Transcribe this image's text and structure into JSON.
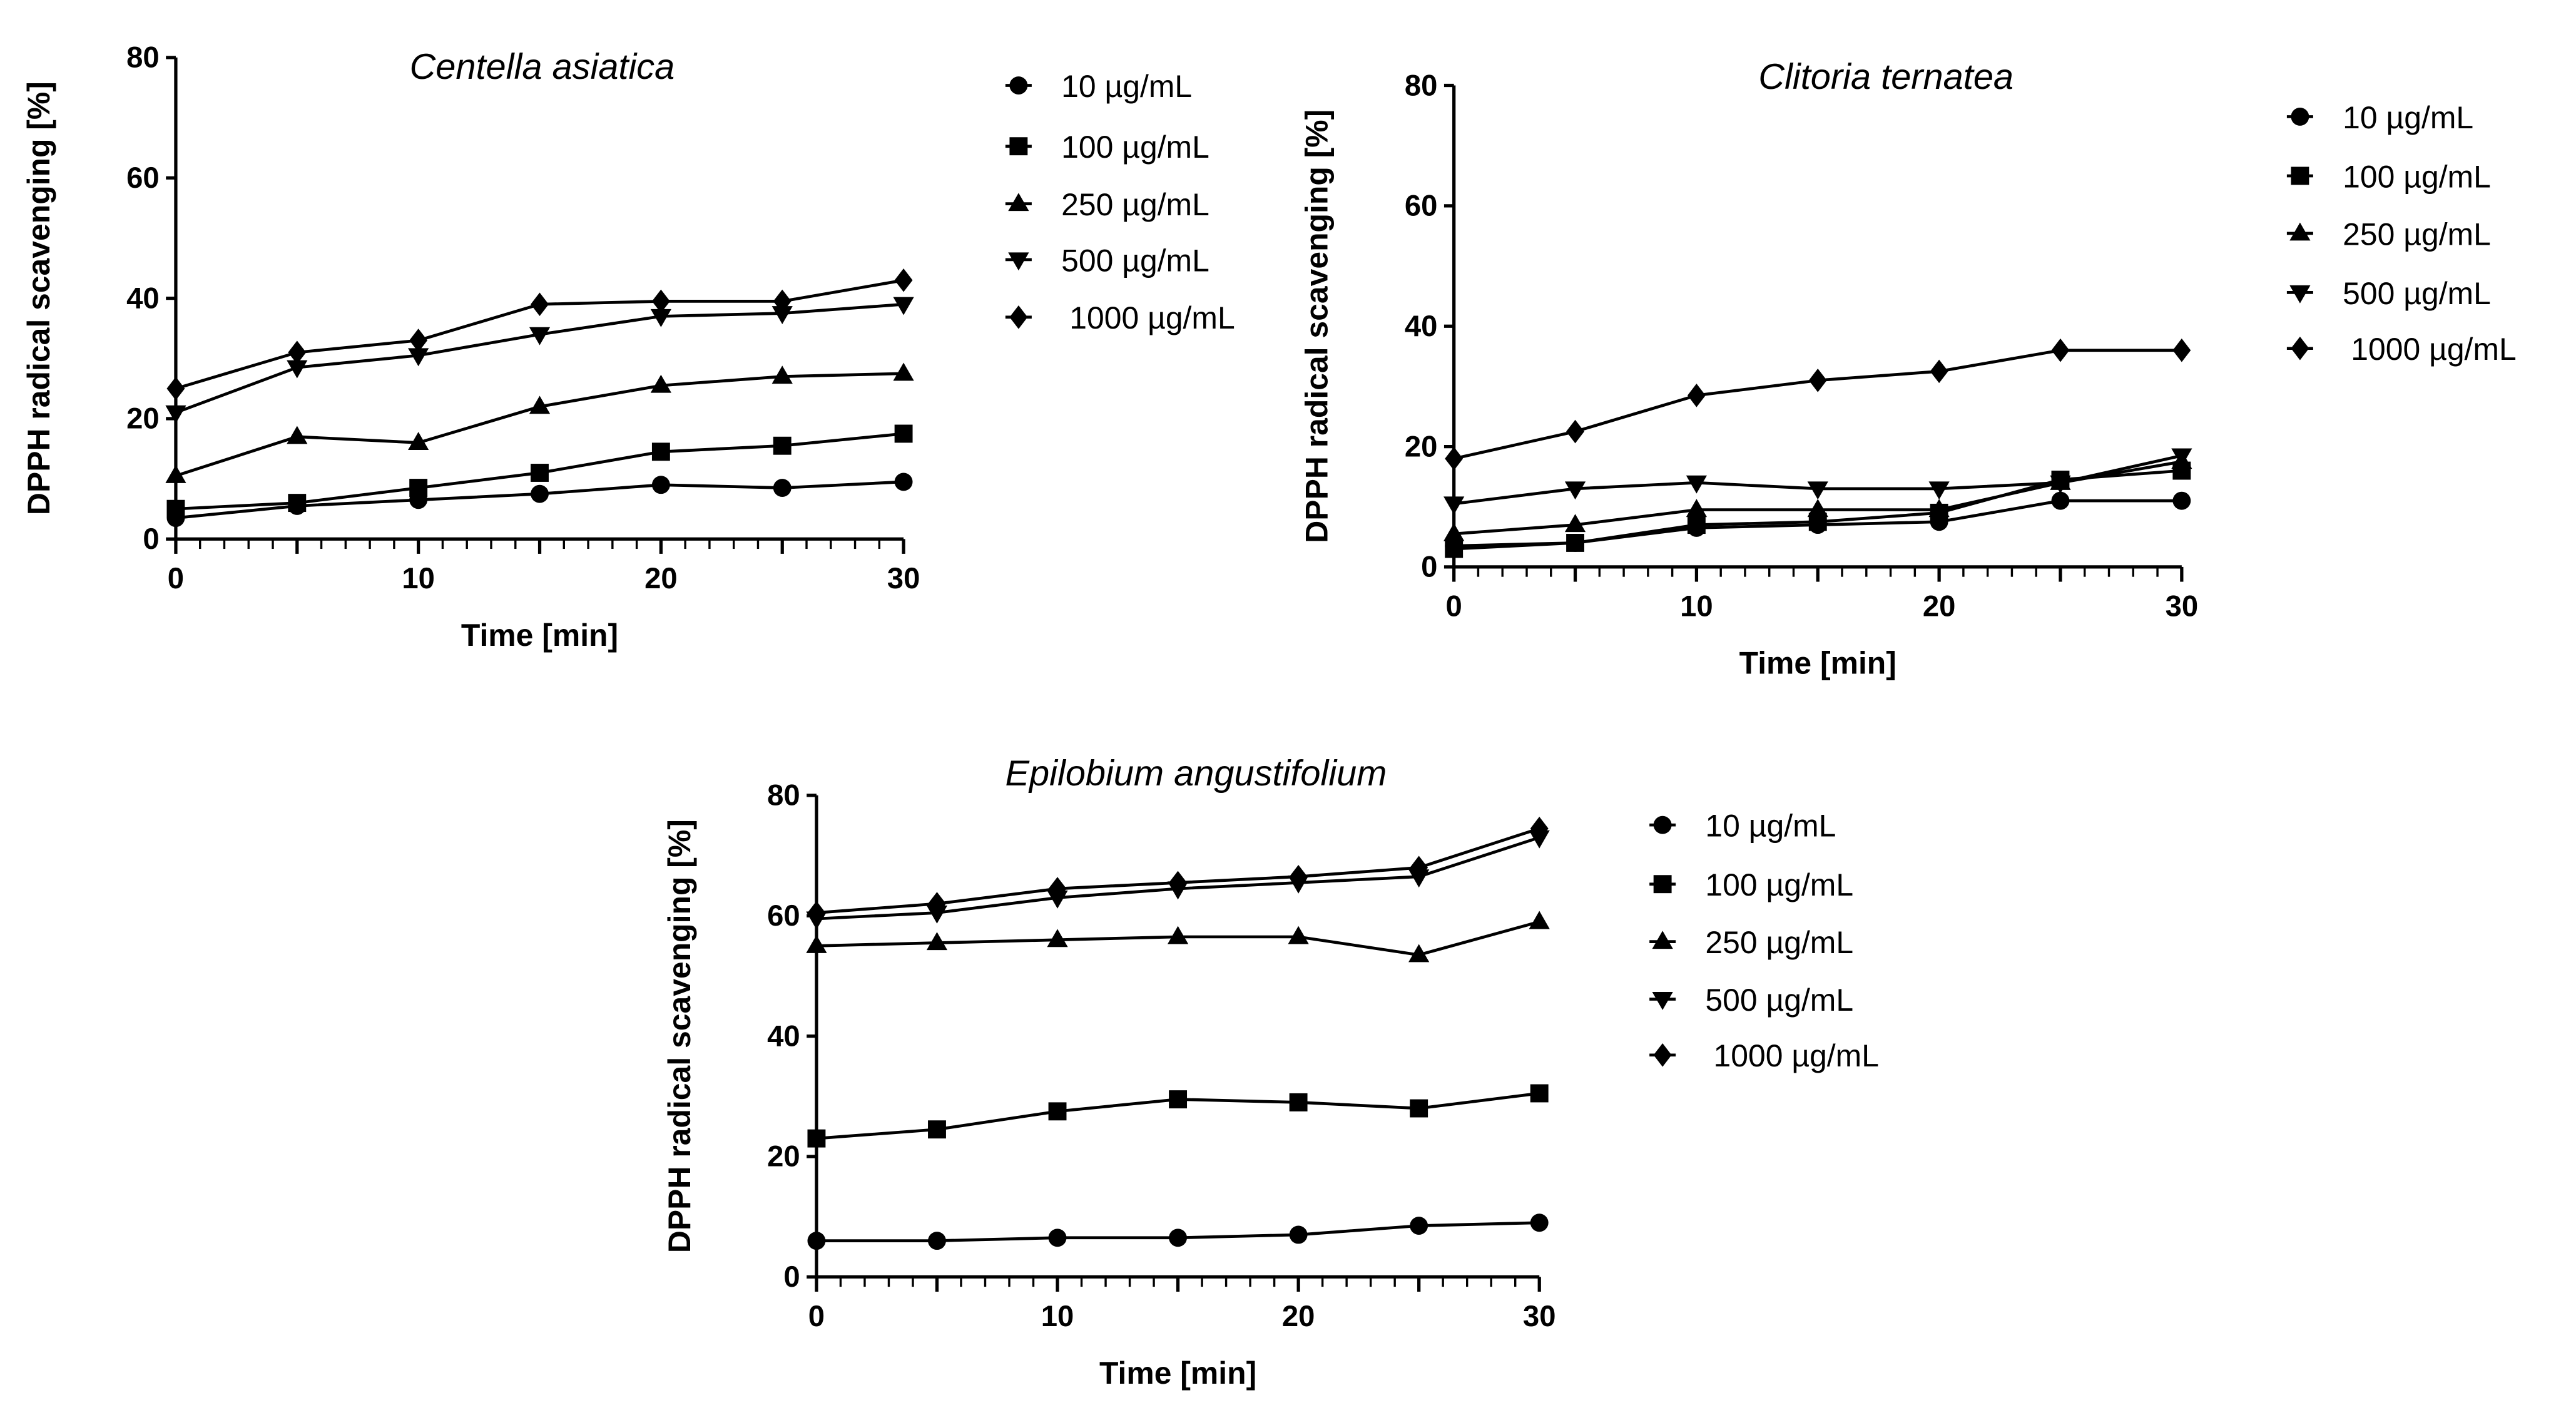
{
  "chart_data": [
    {
      "type": "line",
      "title": "Centella asiatica",
      "xlabel": "Time [min]",
      "ylabel": "DPPH radical scavenging [%]",
      "xlim": [
        0,
        30
      ],
      "ylim": [
        0,
        80
      ],
      "xticks": [
        0,
        10,
        20,
        30
      ],
      "yticks": [
        0,
        20,
        40,
        60,
        80
      ],
      "legend_position": "right",
      "x": [
        0,
        5,
        10,
        15,
        20,
        25,
        30
      ],
      "series": [
        {
          "name": "10 µg/mL",
          "marker": "circle",
          "values": [
            3.5,
            5.5,
            6.5,
            7.5,
            9,
            8.5,
            9.5
          ]
        },
        {
          "name": "100 µg/mL",
          "marker": "square",
          "values": [
            5,
            6,
            8.5,
            11,
            14.5,
            15.5,
            17.5
          ]
        },
        {
          "name": "250 µg/mL",
          "marker": "triangle-up",
          "values": [
            10.5,
            17,
            16,
            22,
            25.5,
            27,
            27.5
          ]
        },
        {
          "name": "500 µg/mL",
          "marker": "triangle-down",
          "values": [
            21,
            28.5,
            30.5,
            34,
            37,
            37.5,
            39
          ]
        },
        {
          "name": "1000 µg/mL",
          "marker": "diamond",
          "values": [
            25,
            31,
            33,
            39,
            39.5,
            39.5,
            43
          ]
        }
      ]
    },
    {
      "type": "line",
      "title": "Clitoria ternatea",
      "xlabel": "Time [min]",
      "ylabel": "DPPH radical scavenging [%]",
      "xlim": [
        0,
        30
      ],
      "ylim": [
        0,
        80
      ],
      "xticks": [
        0,
        10,
        20,
        30
      ],
      "yticks": [
        0,
        20,
        40,
        60,
        80
      ],
      "legend_position": "right",
      "x": [
        0,
        5,
        10,
        15,
        20,
        25,
        30
      ],
      "series": [
        {
          "name": "10 µg/mL",
          "marker": "circle",
          "values": [
            3.5,
            4,
            6.5,
            7,
            7.5,
            11,
            11
          ]
        },
        {
          "name": "100 µg/mL",
          "marker": "square",
          "values": [
            3,
            4,
            7,
            7.5,
            9,
            14.5,
            16
          ]
        },
        {
          "name": "250 µg/mL",
          "marker": "triangle-up",
          "values": [
            5.5,
            7,
            9.5,
            9.5,
            9.5,
            14,
            17.5
          ]
        },
        {
          "name": "500 µg/mL",
          "marker": "triangle-down",
          "values": [
            10.5,
            13,
            14,
            13,
            13,
            14,
            18.5
          ]
        },
        {
          "name": "1000 µg/mL",
          "marker": "diamond",
          "values": [
            18,
            22.5,
            28.5,
            31,
            32.5,
            36,
            36
          ]
        }
      ]
    },
    {
      "type": "line",
      "title": "Epilobium angustifolium",
      "xlabel": "Time [min]",
      "ylabel": "DPPH radical scavenging [%]",
      "xlim": [
        0,
        30
      ],
      "ylim": [
        0,
        80
      ],
      "xticks": [
        0,
        10,
        20,
        30
      ],
      "yticks": [
        0,
        20,
        40,
        60,
        80
      ],
      "legend_position": "right",
      "x": [
        0,
        5,
        10,
        15,
        20,
        25,
        30
      ],
      "series": [
        {
          "name": "10 µg/mL",
          "marker": "circle",
          "values": [
            6,
            6,
            6.5,
            6.5,
            7,
            8.5,
            9
          ]
        },
        {
          "name": "100 µg/mL",
          "marker": "square",
          "values": [
            23,
            24.5,
            27.5,
            29.5,
            29,
            28,
            30.5
          ]
        },
        {
          "name": "250 µg/mL",
          "marker": "triangle-up",
          "values": [
            55,
            55.5,
            56,
            56.5,
            56.5,
            53.5,
            59
          ]
        },
        {
          "name": "500 µg/mL",
          "marker": "triangle-down",
          "values": [
            59.5,
            60.5,
            63,
            64.5,
            65.5,
            66.5,
            73
          ]
        },
        {
          "name": "1000 µg/mL",
          "marker": "diamond",
          "values": [
            60.5,
            62,
            64.5,
            65.5,
            66.5,
            68,
            74.5
          ]
        }
      ]
    }
  ]
}
